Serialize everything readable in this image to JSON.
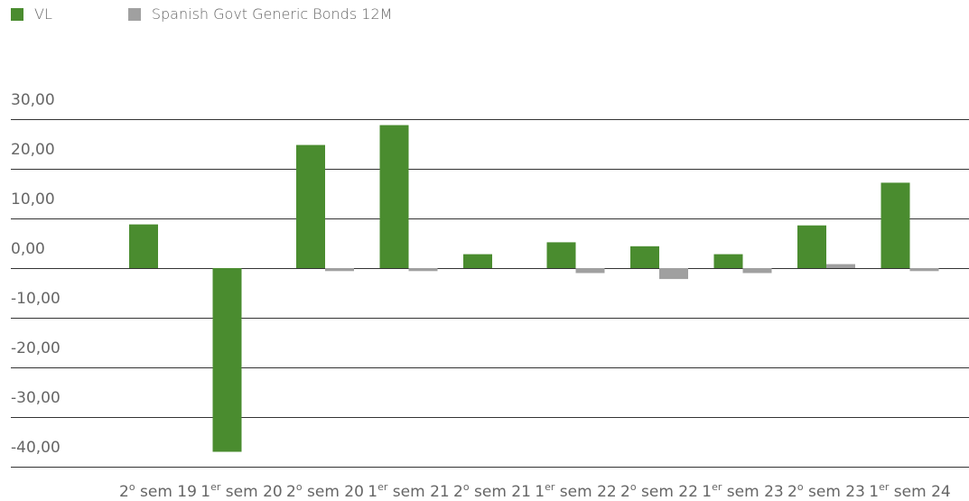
{
  "chart_data": {
    "type": "bar",
    "categories": [
      {
        "pre": "2",
        "sup": "o",
        "post": " sem 19"
      },
      {
        "pre": "1",
        "sup": "er",
        "post": " sem 20"
      },
      {
        "pre": "2",
        "sup": "o",
        "post": " sem 20"
      },
      {
        "pre": "1",
        "sup": "er",
        "post": " sem 21"
      },
      {
        "pre": "2",
        "sup": "o",
        "post": " sem 21"
      },
      {
        "pre": "1",
        "sup": "er",
        "post": " sem 22"
      },
      {
        "pre": "2",
        "sup": "o",
        "post": " sem 22"
      },
      {
        "pre": "1",
        "sup": "er",
        "post": " sem 23"
      },
      {
        "pre": "2",
        "sup": "o",
        "post": " sem 23"
      },
      {
        "pre": "1",
        "sup": "er",
        "post": " sem 24"
      }
    ],
    "series": [
      {
        "name": "VL",
        "color": "#4a8c2f",
        "values": [
          8.8,
          -37.0,
          24.8,
          28.8,
          2.8,
          5.2,
          4.4,
          2.8,
          8.6,
          17.2
        ]
      },
      {
        "name": "Spanish Govt Generic Bonds 12M",
        "color": "#a0a0a0",
        "values": [
          0,
          0,
          -0.6,
          -0.6,
          0,
          -1.0,
          -2.2,
          -1.0,
          0.8,
          -0.6
        ]
      }
    ],
    "yticks": [
      "30,00",
      "20,00",
      "10,00",
      "0,00",
      "-10,00",
      "-20,00",
      "-30,00",
      "-40,00"
    ],
    "ylim": [
      -40,
      30
    ],
    "grid": true,
    "legend_position": "top-left"
  }
}
